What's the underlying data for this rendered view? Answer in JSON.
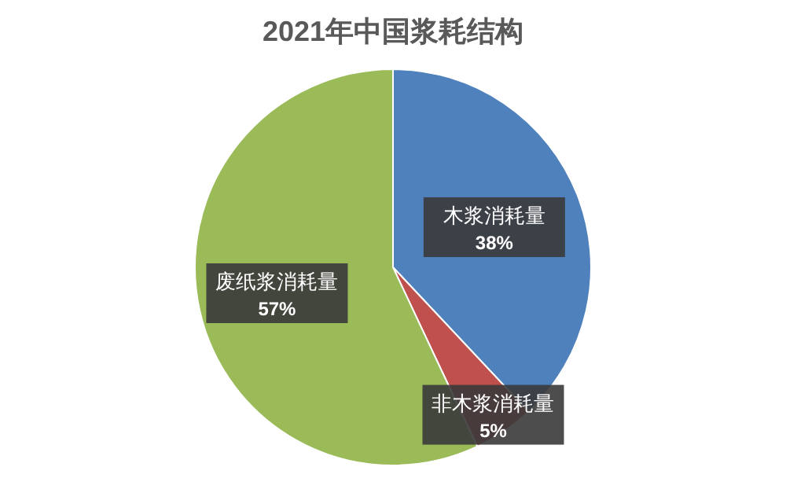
{
  "chart_data": {
    "type": "pie",
    "title": "2021年中国浆耗结构",
    "categories": [
      "木浆消耗量",
      "非木浆消耗量",
      "废纸浆消耗量"
    ],
    "values": [
      38,
      5,
      57
    ],
    "colors": [
      "#4f81bd",
      "#c0504d",
      "#9bbb59"
    ],
    "value_labels": [
      "38%",
      "5%",
      "57%"
    ]
  }
}
